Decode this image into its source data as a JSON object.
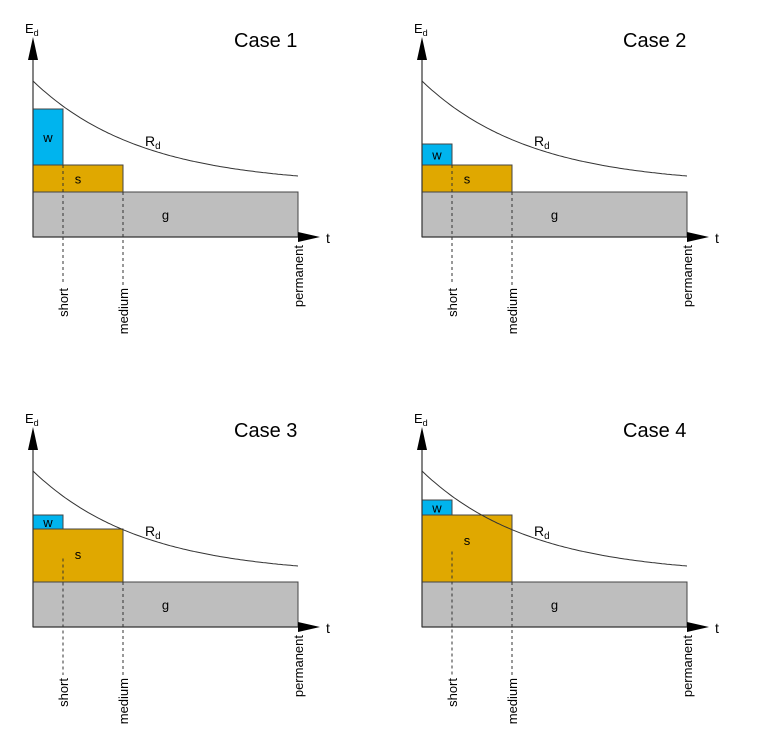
{
  "colors": {
    "w": "#00B4EE",
    "s": "#E0A800",
    "g": "#BEBEBE",
    "line": "#333333"
  },
  "chart_data": {
    "type": "diagram",
    "y_axis_label": {
      "main": "E",
      "sub": "d"
    },
    "x_axis_label": "t",
    "curve_label": {
      "main": "R",
      "sub": "d"
    },
    "time_marks": [
      {
        "label": "short",
        "t": 3.0
      },
      {
        "label": "medium",
        "t": 9.0
      },
      {
        "label": "permanent",
        "t": 26.5
      }
    ],
    "resistance_curve": {
      "r0": 15.6,
      "r_inf": 5.2,
      "decay": 0.0923
    },
    "cases": [
      {
        "title": "Case 1",
        "bars": {
          "g": {
            "label": "g",
            "height": 4.5,
            "t_end": 26.5
          },
          "s": {
            "label": "s",
            "height": 2.7,
            "t_end": 9.0
          },
          "w": {
            "label": "w",
            "height": 5.6,
            "t_end": 3.0
          }
        }
      },
      {
        "title": "Case 2",
        "bars": {
          "g": {
            "label": "g",
            "height": 4.5,
            "t_end": 26.5
          },
          "s": {
            "label": "s",
            "height": 2.7,
            "t_end": 9.0
          },
          "w": {
            "label": "w",
            "height": 2.1,
            "t_end": 3.0
          }
        }
      },
      {
        "title": "Case 3",
        "bars": {
          "g": {
            "label": "g",
            "height": 4.5,
            "t_end": 26.5
          },
          "s": {
            "label": "s",
            "height": 5.3,
            "t_end": 9.0
          },
          "w": {
            "label": "w",
            "height": 1.4,
            "t_end": 3.0
          }
        }
      },
      {
        "title": "Case 4",
        "bars": {
          "g": {
            "label": "g",
            "height": 4.5,
            "t_end": 26.5
          },
          "s": {
            "label": "s",
            "height": 6.7,
            "t_end": 9.0
          },
          "w": {
            "label": "w",
            "height": 1.5,
            "t_end": 3.0
          }
        }
      }
    ]
  }
}
